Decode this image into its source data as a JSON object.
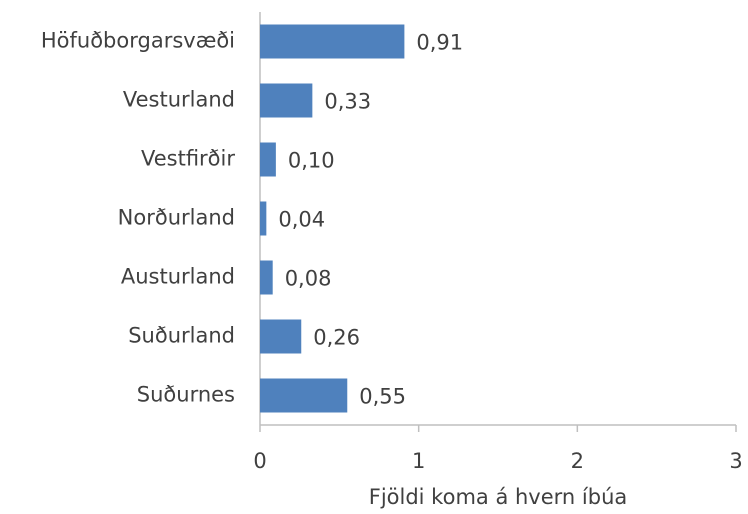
{
  "chart_data": {
    "type": "bar",
    "orientation": "horizontal",
    "categories": [
      "Höfuðborgarsvæði",
      "Vesturland",
      "Vestfirðir",
      "Norðurland",
      "Austurland",
      "Suðurland",
      "Suðurnes"
    ],
    "values": [
      0.91,
      0.33,
      0.1,
      0.04,
      0.08,
      0.26,
      0.55
    ],
    "value_labels": [
      "0,91",
      "0,33",
      "0,10",
      "0,04",
      "0,08",
      "0,26",
      "0,55"
    ],
    "color": "#4f81bd",
    "xlim": [
      0,
      3
    ],
    "xticks": [
      0,
      1,
      2,
      3
    ],
    "xlabel": "Fjöldi koma á hvern íbúa",
    "grid": false
  }
}
